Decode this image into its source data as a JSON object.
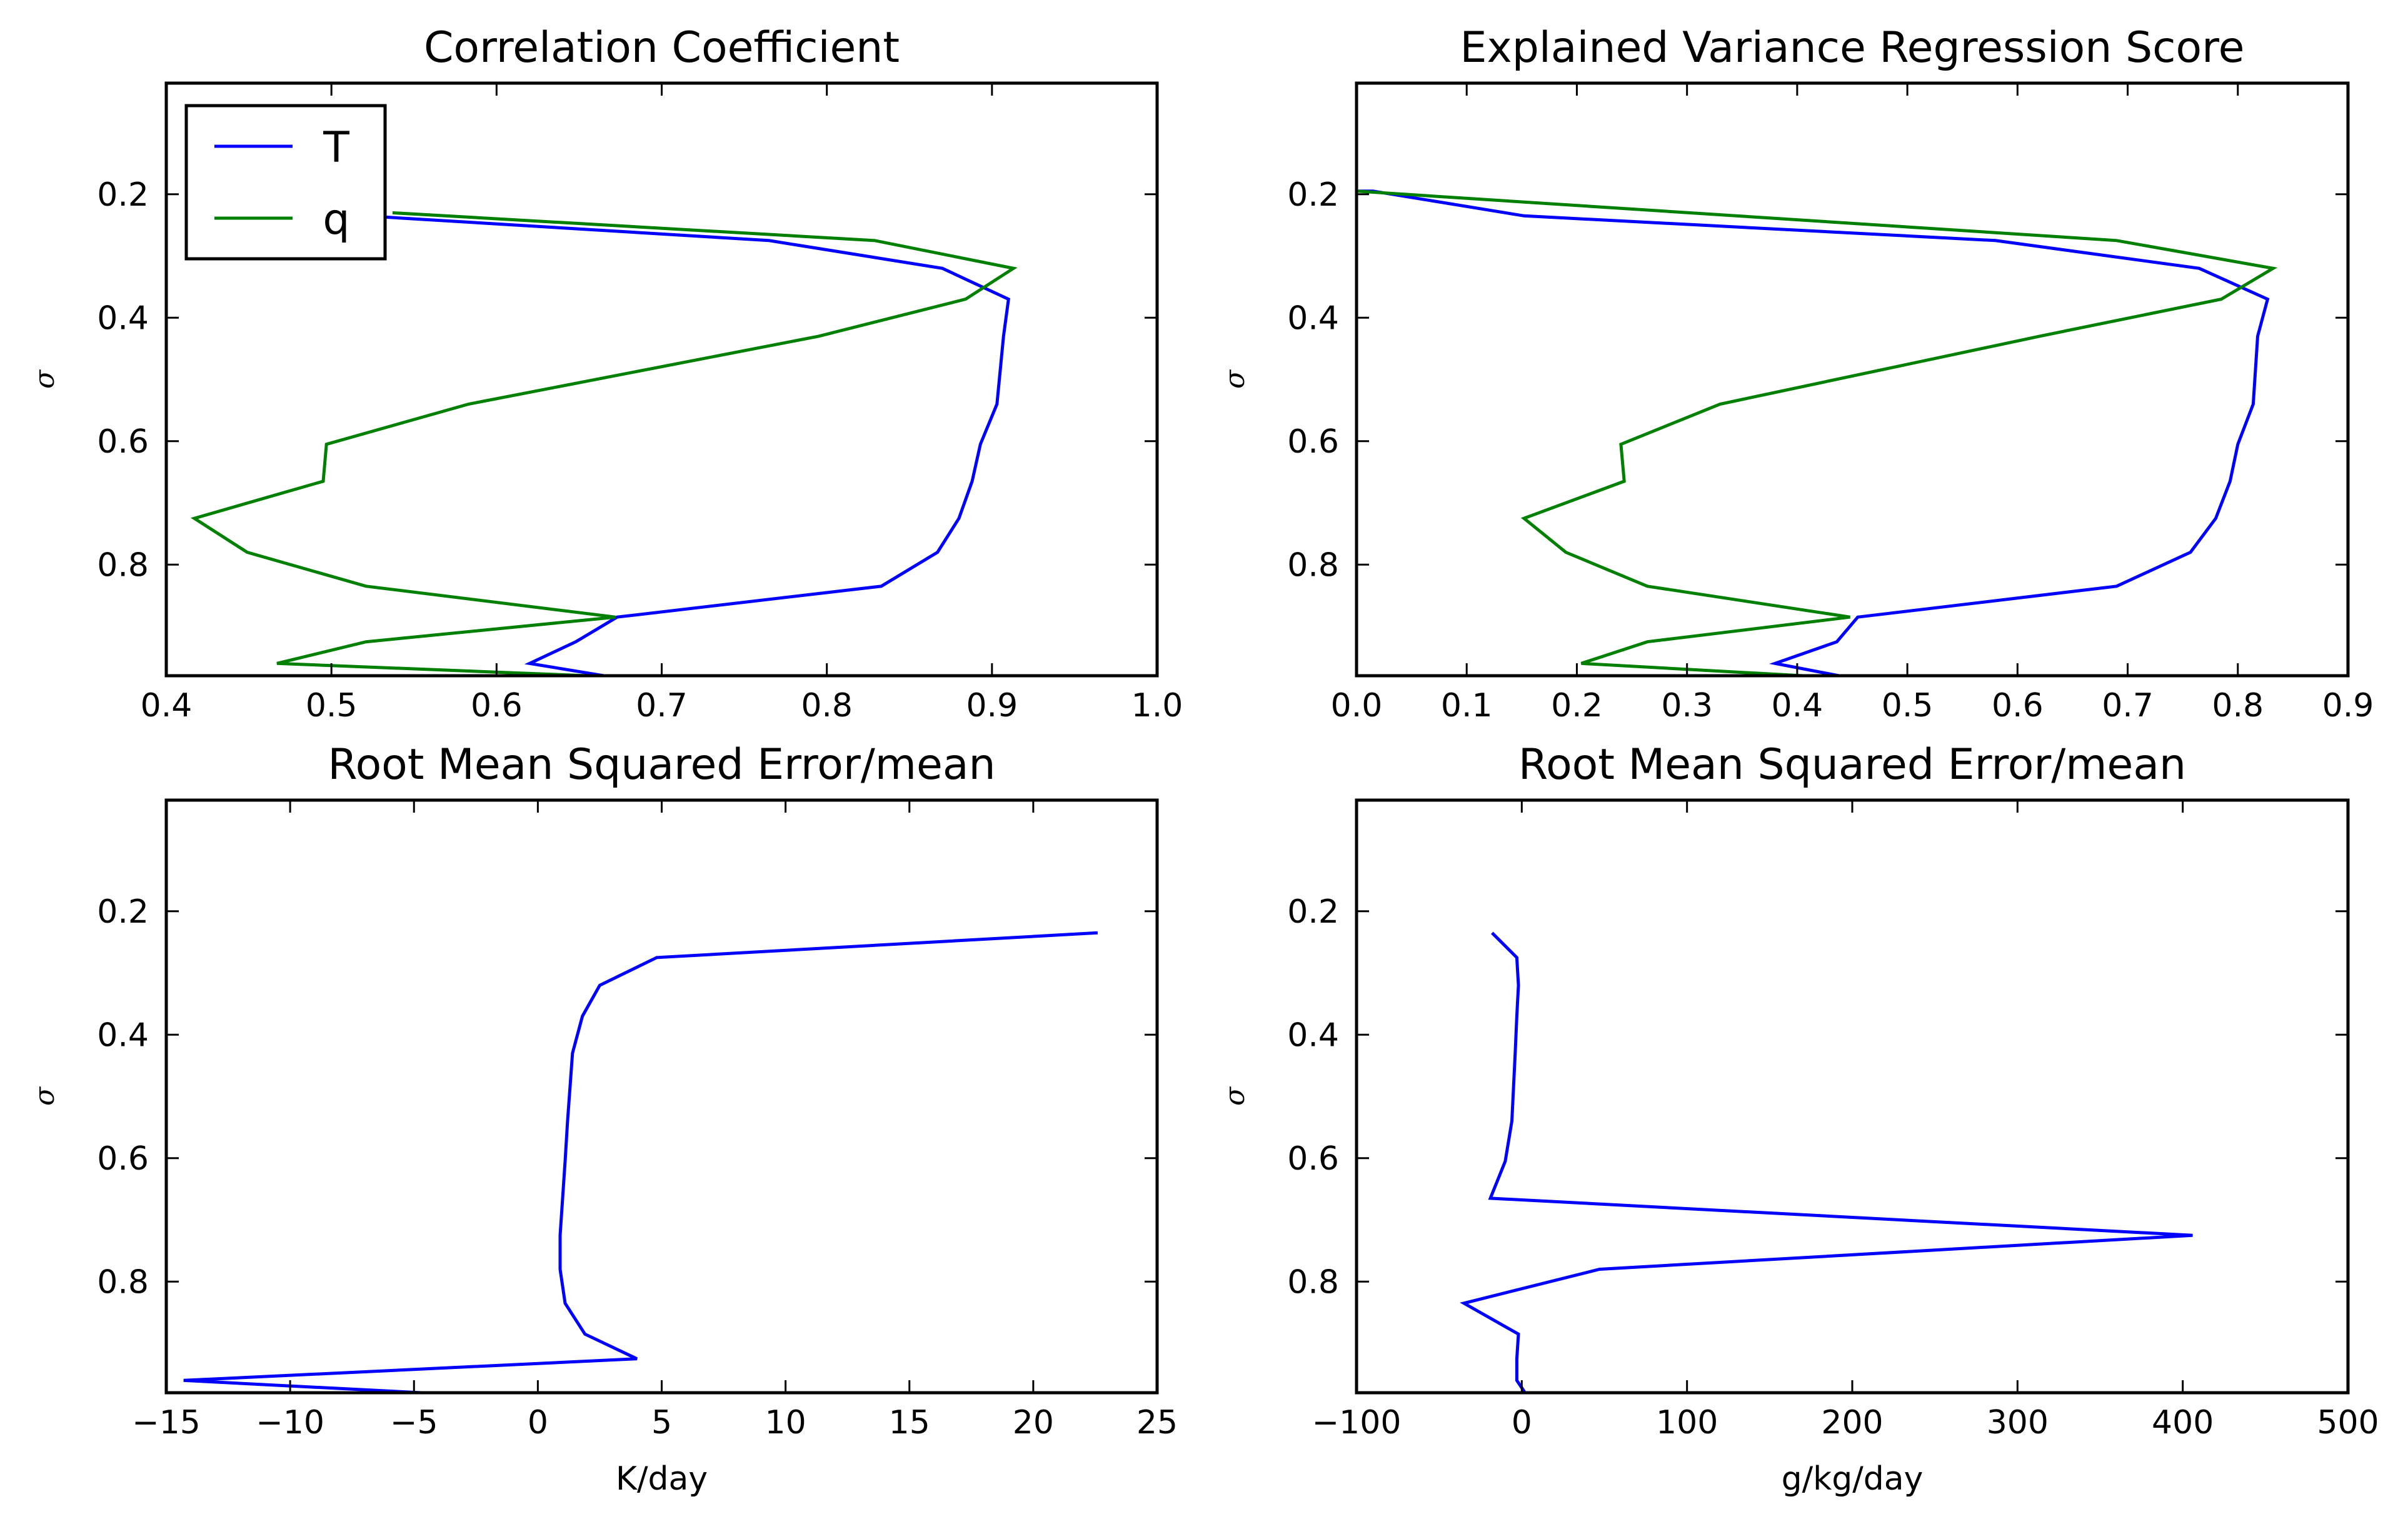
{
  "figure": {
    "background": "#ffffff"
  },
  "colors": {
    "T": "#0000ff",
    "q": "#008000"
  },
  "chart_data": [
    {
      "type": "line",
      "title": "Correlation Coefficient",
      "xlabel": "",
      "ylabel": "σ",
      "xlim": [
        0.4,
        1.0
      ],
      "ylim": [
        0.98,
        0.02
      ],
      "xticks": [
        "0.4",
        "0.5",
        "0.6",
        "0.7",
        "0.8",
        "0.9",
        "1.0"
      ],
      "yticks": [
        "0.2",
        "0.4",
        "0.6",
        "0.8"
      ],
      "legend": {
        "placement": "upper-left",
        "entries": [
          {
            "label": "T",
            "color": "#0000ff"
          },
          {
            "label": "q",
            "color": "#008000"
          }
        ]
      },
      "series": [
        {
          "name": "T",
          "color": "#0000ff",
          "x": [
            0.52,
            0.765,
            0.87,
            0.91,
            0.907,
            0.903,
            0.893,
            0.888,
            0.88,
            0.867,
            0.833,
            0.673,
            0.648,
            0.62,
            0.665
          ],
          "y": [
            0.235,
            0.275,
            0.32,
            0.37,
            0.43,
            0.54,
            0.605,
            0.665,
            0.725,
            0.78,
            0.835,
            0.885,
            0.925,
            0.96,
            0.98
          ]
        },
        {
          "name": "q",
          "color": "#008000",
          "x": [
            0.537,
            0.829,
            0.913,
            0.884,
            0.795,
            0.583,
            0.497,
            0.495,
            0.417,
            0.449,
            0.521,
            0.672,
            0.521,
            0.467,
            0.655
          ],
          "y": [
            0.23,
            0.275,
            0.32,
            0.37,
            0.43,
            0.54,
            0.605,
            0.665,
            0.725,
            0.78,
            0.835,
            0.885,
            0.925,
            0.96,
            0.98
          ]
        }
      ]
    },
    {
      "type": "line",
      "title": "Explained Variance Regression Score",
      "xlabel": "",
      "ylabel": "σ",
      "xlim": [
        0.0,
        0.9
      ],
      "ylim": [
        0.98,
        0.02
      ],
      "xticks": [
        "0.0",
        "0.1",
        "0.2",
        "0.3",
        "0.4",
        "0.5",
        "0.6",
        "0.7",
        "0.8",
        "0.9"
      ],
      "yticks": [
        "0.2",
        "0.4",
        "0.6",
        "0.8"
      ],
      "series": [
        {
          "name": "T",
          "color": "#0000ff",
          "x": [
            0.0,
            0.015,
            0.152,
            0.58,
            0.765,
            0.827,
            0.818,
            0.814,
            0.8,
            0.793,
            0.78,
            0.757,
            0.69,
            0.455,
            0.436,
            0.38,
            0.438
          ],
          "y": [
            0.195,
            0.195,
            0.235,
            0.275,
            0.32,
            0.37,
            0.43,
            0.54,
            0.605,
            0.665,
            0.725,
            0.78,
            0.835,
            0.885,
            0.925,
            0.96,
            0.98
          ]
        },
        {
          "name": "q",
          "color": "#008000",
          "x": [
            0.0,
            0.69,
            0.832,
            0.785,
            0.62,
            0.33,
            0.24,
            0.243,
            0.152,
            0.19,
            0.264,
            0.448,
            0.264,
            0.204,
            0.405
          ],
          "y": [
            0.195,
            0.275,
            0.32,
            0.37,
            0.43,
            0.54,
            0.605,
            0.665,
            0.725,
            0.78,
            0.835,
            0.885,
            0.925,
            0.96,
            0.98
          ]
        }
      ]
    },
    {
      "type": "line",
      "title": "Root Mean Squared Error/mean",
      "xlabel": "K/day",
      "ylabel": "σ",
      "xlim": [
        -15,
        25
      ],
      "ylim": [
        0.98,
        0.02
      ],
      "xticks": [
        "−15",
        "−10",
        "−5",
        "0",
        "5",
        "10",
        "15",
        "20",
        "25"
      ],
      "yticks": [
        "0.2",
        "0.4",
        "0.6",
        "0.8"
      ],
      "series": [
        {
          "name": "T",
          "color": "#0000ff",
          "x": [
            22.6,
            4.8,
            2.5,
            1.8,
            1.4,
            1.2,
            1.1,
            1.0,
            0.9,
            0.9,
            1.1,
            1.9,
            4.0,
            -14.3,
            -4.7
          ],
          "y": [
            0.235,
            0.275,
            0.32,
            0.37,
            0.43,
            0.54,
            0.605,
            0.665,
            0.725,
            0.78,
            0.835,
            0.885,
            0.925,
            0.96,
            0.98
          ]
        }
      ]
    },
    {
      "type": "line",
      "title": "Root Mean Squared Error/mean",
      "xlabel": "g/kg/day",
      "ylabel": "σ",
      "xlim": [
        -100,
        500
      ],
      "ylim": [
        0.98,
        0.02
      ],
      "xticks": [
        "−100",
        "0",
        "100",
        "200",
        "300",
        "400",
        "500"
      ],
      "yticks": [
        "0.2",
        "0.4",
        "0.6",
        "0.8"
      ],
      "series": [
        {
          "name": "T",
          "color": "#0000ff",
          "x": [
            -18,
            -3,
            -2,
            -3,
            -4,
            -6,
            -10,
            -19,
            406,
            47,
            -35,
            -2,
            -3,
            -3,
            2
          ],
          "y": [
            0.235,
            0.275,
            0.32,
            0.37,
            0.43,
            0.54,
            0.605,
            0.665,
            0.725,
            0.78,
            0.835,
            0.885,
            0.925,
            0.96,
            0.98
          ]
        }
      ]
    }
  ]
}
